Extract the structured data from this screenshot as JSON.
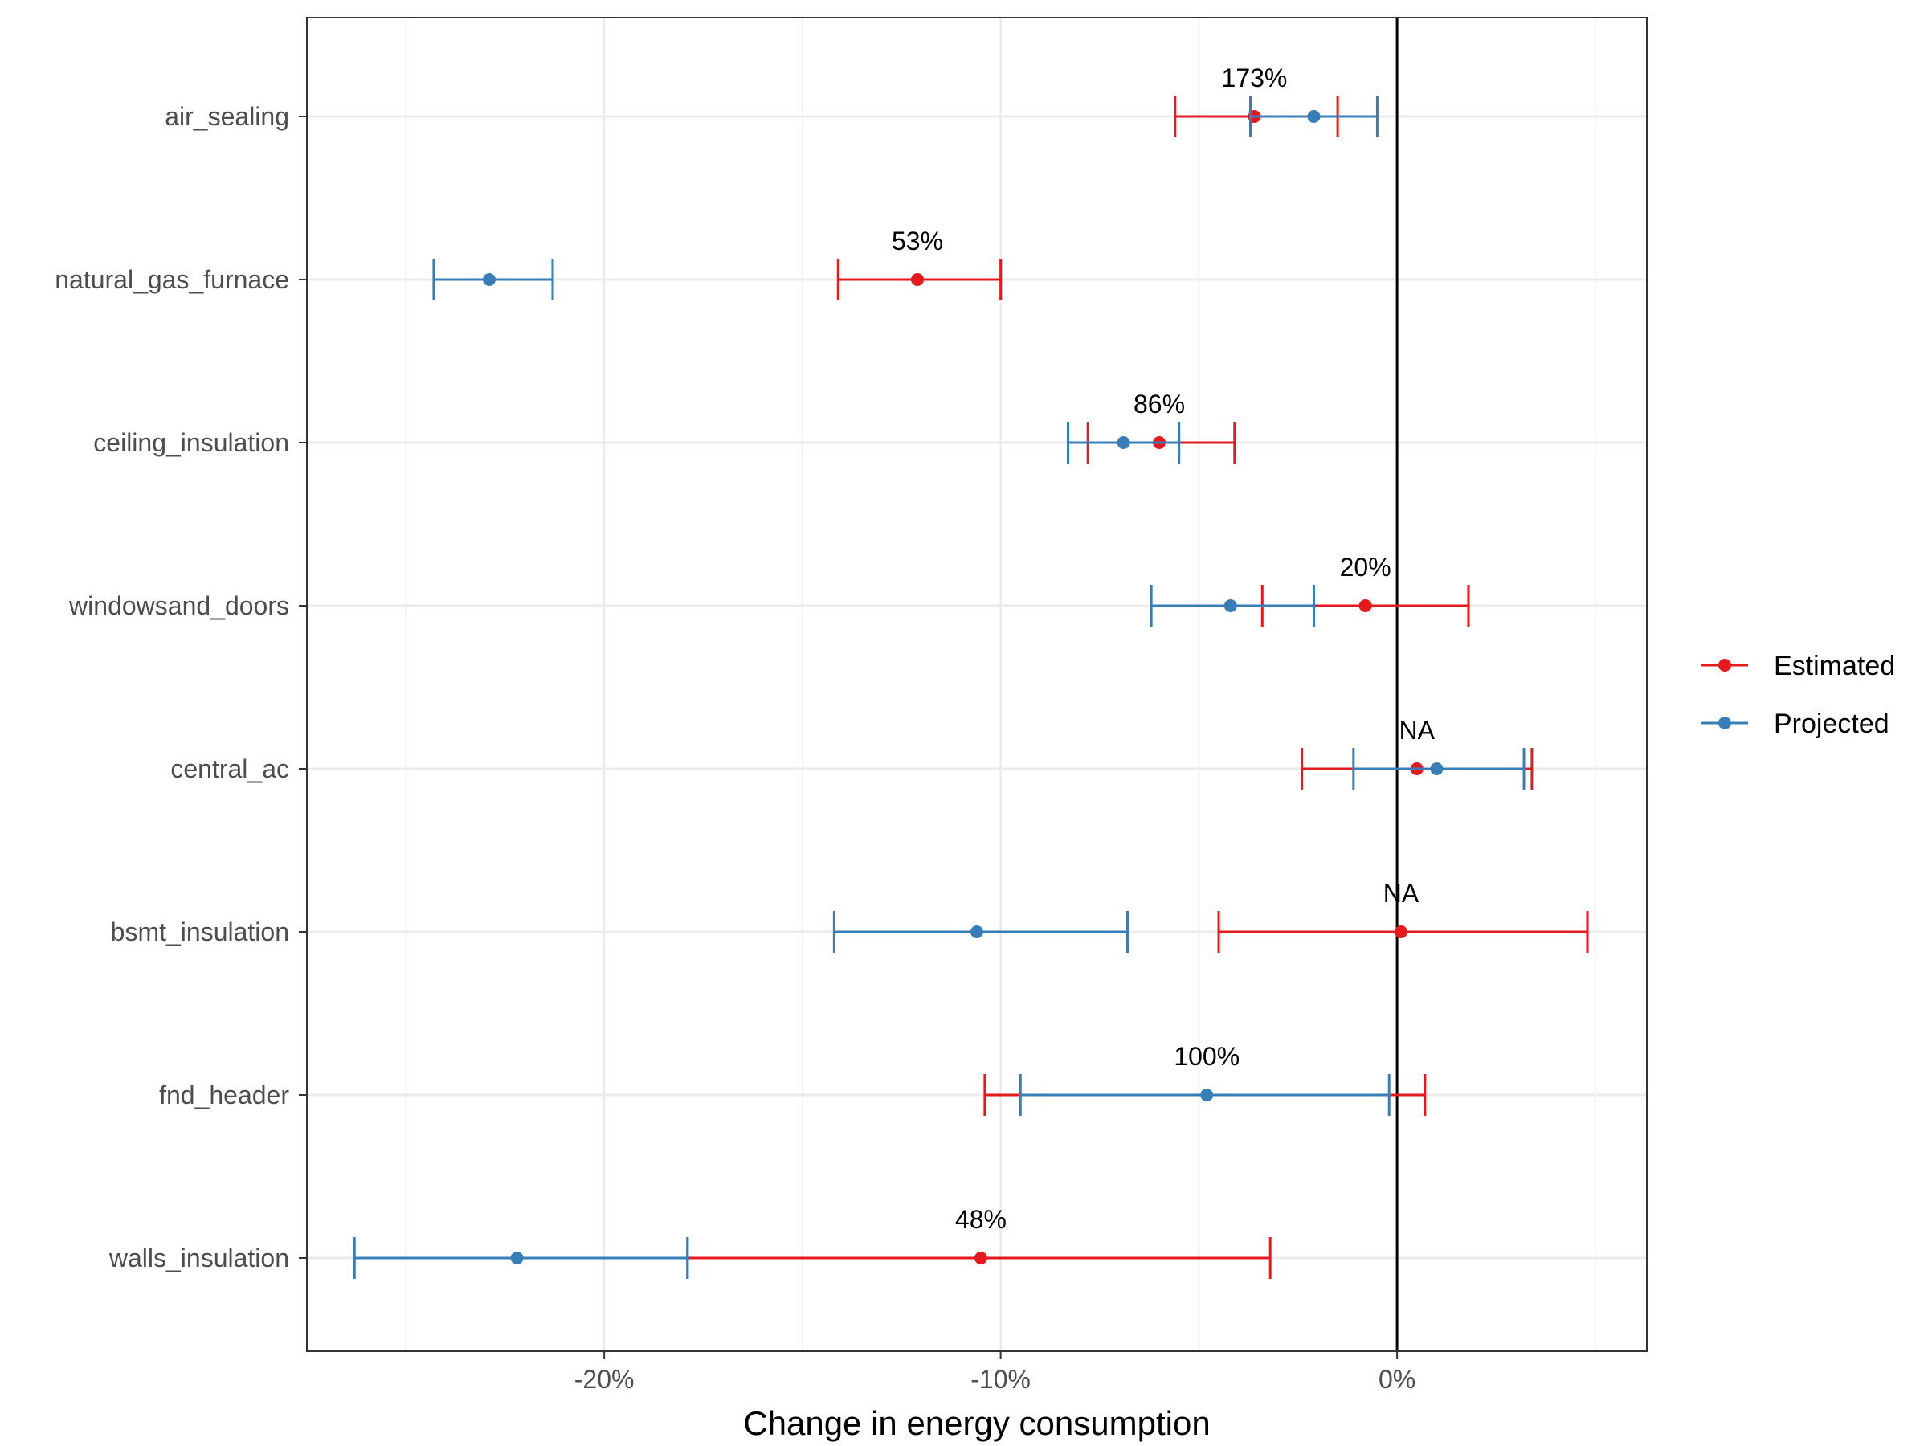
{
  "chart_data": {
    "type": "scatter",
    "subtype": "point-errorbar",
    "title": "",
    "xlabel": "Change in energy consumption",
    "ylabel": "",
    "xlim": [
      -27.5,
      6.3
    ],
    "xticks": [
      -20,
      -10,
      0
    ],
    "xtick_labels": [
      "-20%",
      "-10%",
      "0%"
    ],
    "reference_line_x": 0,
    "grid": true,
    "legend_position": "right",
    "colors": {
      "Estimated": "#e41a1c",
      "Projected": "#377eb8"
    },
    "categories": [
      "air_sealing",
      "natural_gas_furnace",
      "ceiling_insulation",
      "windowsand_doors",
      "central_ac",
      "bsmt_insulation",
      "fnd_header",
      "walls_insulation"
    ],
    "series": [
      {
        "name": "Estimated",
        "points": [
          {
            "category": "air_sealing",
            "value": -3.6,
            "low": -5.6,
            "high": -1.5
          },
          {
            "category": "natural_gas_furnace",
            "value": -12.1,
            "low": -14.1,
            "high": -10.0
          },
          {
            "category": "ceiling_insulation",
            "value": -6.0,
            "low": -7.8,
            "high": -4.1
          },
          {
            "category": "windowsand_doors",
            "value": -0.8,
            "low": -3.4,
            "high": 1.8
          },
          {
            "category": "central_ac",
            "value": 0.5,
            "low": -2.4,
            "high": 3.4
          },
          {
            "category": "bsmt_insulation",
            "value": 0.1,
            "low": -4.5,
            "high": 4.8
          },
          {
            "category": "fnd_header",
            "value": null,
            "low": -10.4,
            "high": 0.7
          },
          {
            "category": "walls_insulation",
            "value": -10.5,
            "low": -17.9,
            "high": -3.2
          }
        ]
      },
      {
        "name": "Projected",
        "points": [
          {
            "category": "air_sealing",
            "value": -2.1,
            "low": -3.7,
            "high": -0.5
          },
          {
            "category": "natural_gas_furnace",
            "value": -22.9,
            "low": -24.3,
            "high": -21.3
          },
          {
            "category": "ceiling_insulation",
            "value": -6.9,
            "low": -8.3,
            "high": -5.5
          },
          {
            "category": "windowsand_doors",
            "value": -4.2,
            "low": -6.2,
            "high": -2.1
          },
          {
            "category": "central_ac",
            "value": 1.0,
            "low": -1.1,
            "high": 3.2
          },
          {
            "category": "bsmt_insulation",
            "value": -10.6,
            "low": -14.2,
            "high": -6.8
          },
          {
            "category": "fnd_header",
            "value": -4.8,
            "low": -9.5,
            "high": -0.2
          },
          {
            "category": "walls_insulation",
            "value": -22.2,
            "low": -26.3,
            "high": -17.9
          }
        ]
      }
    ],
    "annotations": [
      {
        "category": "air_sealing",
        "x": -3.6,
        "text": "173%"
      },
      {
        "category": "natural_gas_furnace",
        "x": -12.1,
        "text": "53%"
      },
      {
        "category": "ceiling_insulation",
        "x": -6.0,
        "text": "86%"
      },
      {
        "category": "windowsand_doors",
        "x": -0.8,
        "text": "20%"
      },
      {
        "category": "central_ac",
        "x": 0.5,
        "text": "NA"
      },
      {
        "category": "bsmt_insulation",
        "x": 0.1,
        "text": "NA"
      },
      {
        "category": "fnd_header",
        "x": -4.8,
        "text": "100%"
      },
      {
        "category": "walls_insulation",
        "x": -10.5,
        "text": "48%"
      }
    ]
  }
}
